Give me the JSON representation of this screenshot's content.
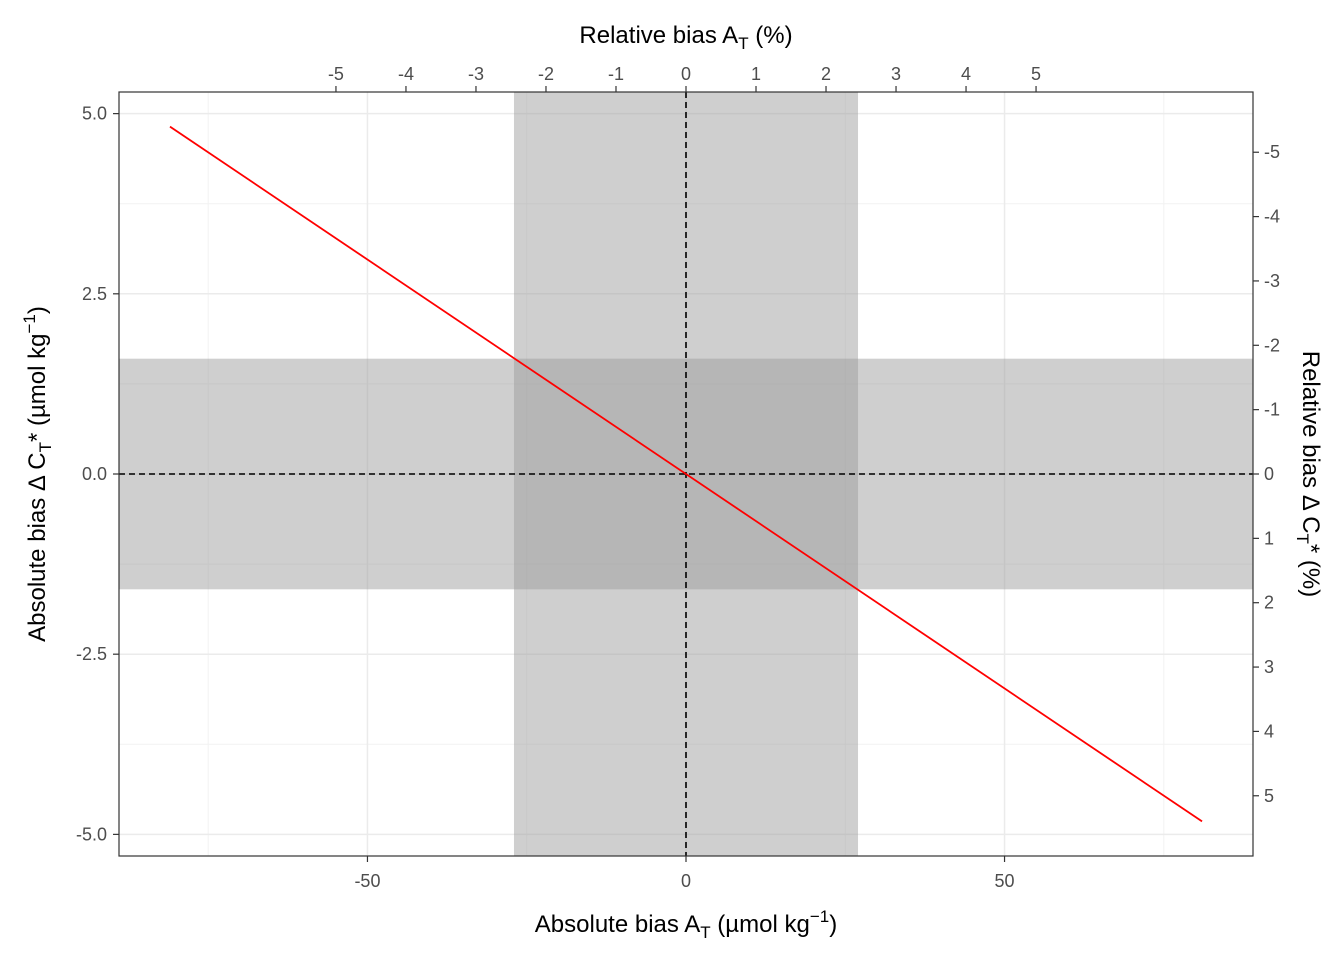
{
  "chart_data": {
    "type": "line",
    "x_title": {
      "main": "Absolute bias A",
      "sub": "T",
      "pre_sup": " (µmol kg",
      "sup": "−1",
      "post": ")"
    },
    "y_title": {
      "main": "Absolute bias Δ C",
      "sub": "T",
      "mid": "* (µmol kg",
      "sup": "−1",
      "post": ")"
    },
    "top_title": {
      "main": "Relative bias A",
      "sub": "T",
      "post": " (%)"
    },
    "right_title": {
      "main": "Relative bias Δ C",
      "sub": "T",
      "post": "* (%)"
    },
    "xlim": [
      -89,
      89
    ],
    "ylim": [
      -5.3,
      5.3
    ],
    "x_ticks": [
      -50,
      0,
      50
    ],
    "x_tick_labels": [
      "-50",
      "0",
      "50"
    ],
    "y_ticks": [
      5,
      2.5,
      0,
      -2.5,
      -5
    ],
    "y_tick_labels": [
      "5.0",
      "2.5",
      "0.0",
      "-2.5",
      "-5.0"
    ],
    "top_ticks": [
      -5,
      -4,
      -3,
      -2,
      -1,
      0,
      1,
      2,
      3,
      4,
      5
    ],
    "top_tick_labels": [
      "-5",
      "-4",
      "-3",
      "-2",
      "-1",
      "0",
      "1",
      "2",
      "3",
      "4",
      "5"
    ],
    "right_ticks": [
      -5,
      -4,
      -3,
      -2,
      -1,
      0,
      1,
      2,
      3,
      4,
      5
    ],
    "right_tick_labels": [
      "-5",
      "-4",
      "-3",
      "-2",
      "-1",
      "0",
      "1",
      "2",
      "3",
      "4",
      "5"
    ],
    "x_shade_range": [
      -27,
      27
    ],
    "y_shade_range": [
      -1.6,
      1.6
    ],
    "series": [
      {
        "x": [
          -81,
          81
        ],
        "y": [
          4.82,
          -4.82
        ],
        "color": "#ff0000"
      }
    ],
    "reference_lines": {
      "x": 0,
      "y": 0
    },
    "grid": true,
    "colors": {
      "line": "#ff0000",
      "shade": "#9b9b9b",
      "grid": "#ebebeb"
    }
  }
}
